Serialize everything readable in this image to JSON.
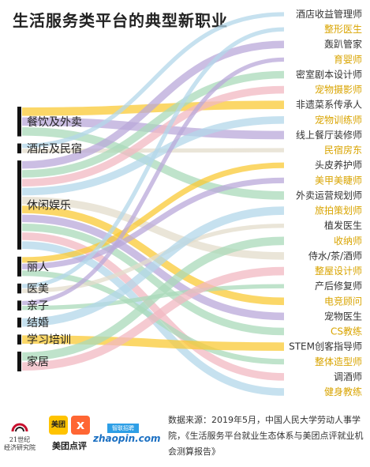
{
  "title": "生活服务类平台的典型新职业",
  "chart_data": {
    "type": "sankey",
    "sources": [
      {
        "id": "s1",
        "name": "餐饮及外卖",
        "weight": 3
      },
      {
        "id": "s2",
        "name": "酒店及民宿",
        "weight": 1
      },
      {
        "id": "s3",
        "name": "休闲娱乐",
        "weight": 9
      },
      {
        "id": "s4",
        "name": "丽人",
        "weight": 2
      },
      {
        "id": "s5",
        "name": "医美",
        "weight": 1
      },
      {
        "id": "s6",
        "name": "亲子",
        "weight": 1
      },
      {
        "id": "s7",
        "name": "结婚",
        "weight": 1
      },
      {
        "id": "s8",
        "name": "学习培训",
        "weight": 1
      },
      {
        "id": "s9",
        "name": "家居",
        "weight": 2
      }
    ],
    "targets": [
      {
        "id": "t1",
        "name": "酒店收益管理师"
      },
      {
        "id": "t2",
        "name": "整形医生"
      },
      {
        "id": "t3",
        "name": "轰趴管家"
      },
      {
        "id": "t4",
        "name": "育婴师"
      },
      {
        "id": "t5",
        "name": "密室剧本设计师"
      },
      {
        "id": "t6",
        "name": "宠物摄影师"
      },
      {
        "id": "t7",
        "name": "非遗菜系传承人"
      },
      {
        "id": "t8",
        "name": "宠物训练师"
      },
      {
        "id": "t9",
        "name": "线上餐厅装修师"
      },
      {
        "id": "t10",
        "name": "民宿房东"
      },
      {
        "id": "t11",
        "name": "头皮养护师"
      },
      {
        "id": "t12",
        "name": "美甲美睫师"
      },
      {
        "id": "t13",
        "name": "外卖运营规划师"
      },
      {
        "id": "t14",
        "name": "旅拍策划师"
      },
      {
        "id": "t15",
        "name": "植发医生"
      },
      {
        "id": "t16",
        "name": "收纳师"
      },
      {
        "id": "t17",
        "name": "侍水/茶/酒师"
      },
      {
        "id": "t18",
        "name": "整屋设计师"
      },
      {
        "id": "t19",
        "name": "产后修复师"
      },
      {
        "id": "t20",
        "name": "电竞顾问"
      },
      {
        "id": "t21",
        "name": "宠物医生"
      },
      {
        "id": "t22",
        "name": "CS教练"
      },
      {
        "id": "t23",
        "name": "STEM创客指导师"
      },
      {
        "id": "t24",
        "name": "整体造型师"
      },
      {
        "id": "t25",
        "name": "调酒师"
      },
      {
        "id": "t26",
        "name": "健身教练"
      }
    ],
    "links": [
      {
        "source": "s1",
        "target": "t7"
      },
      {
        "source": "s1",
        "target": "t9"
      },
      {
        "source": "s1",
        "target": "t13"
      },
      {
        "source": "s2",
        "target": "t1"
      },
      {
        "source": "s2",
        "target": "t10"
      },
      {
        "source": "s3",
        "target": "t3"
      },
      {
        "source": "s3",
        "target": "t5"
      },
      {
        "source": "s3",
        "target": "t6"
      },
      {
        "source": "s3",
        "target": "t8"
      },
      {
        "source": "s3",
        "target": "t17"
      },
      {
        "source": "s3",
        "target": "t20"
      },
      {
        "source": "s3",
        "target": "t21"
      },
      {
        "source": "s3",
        "target": "t22"
      },
      {
        "source": "s3",
        "target": "t25"
      },
      {
        "source": "s3",
        "target": "t26"
      },
      {
        "source": "s4",
        "target": "t11"
      },
      {
        "source": "s4",
        "target": "t12"
      },
      {
        "source": "s4",
        "target": "t24"
      },
      {
        "source": "s5",
        "target": "t2"
      },
      {
        "source": "s5",
        "target": "t15"
      },
      {
        "source": "s6",
        "target": "t4"
      },
      {
        "source": "s6",
        "target": "t19"
      },
      {
        "source": "s7",
        "target": "t14"
      },
      {
        "source": "s8",
        "target": "t23"
      },
      {
        "source": "s9",
        "target": "t16"
      },
      {
        "source": "s9",
        "target": "t18"
      }
    ]
  },
  "footer": {
    "logo_21_text": "21世纪\n经济研究院",
    "logo_meituan_sq1": "美团",
    "logo_meituan_sq2": "ⅹ",
    "logo_meituan_text": "美团点评",
    "logo_zhaopin_top": "智联招聘",
    "logo_zhaopin_text": "zhaopin.com",
    "source_text": "数据来源：2019年5月，中国人民大学劳动人事学院，《生活服务平台就业生态体系与美团点评就业机会测算报告》"
  },
  "colors": {
    "background": "#ffffff",
    "title": "#222222",
    "source_bar": "#111111",
    "flow_colors": [
      "#f9c935",
      "#b9a8d9",
      "#a9d9b9",
      "#f2b8c2",
      "#b3d7ea",
      "#e3dccb"
    ]
  }
}
